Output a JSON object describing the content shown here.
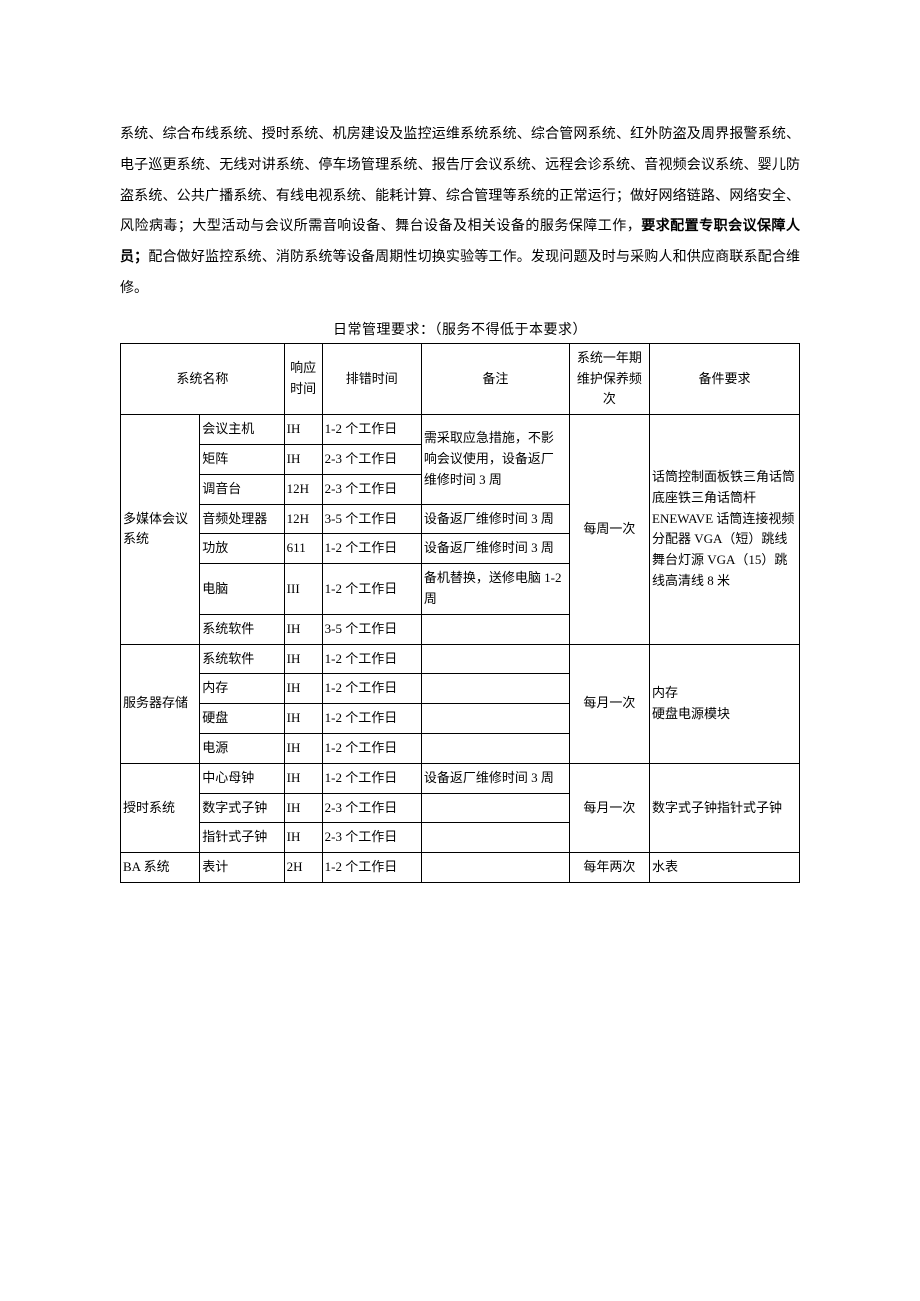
{
  "paragraph": {
    "run1": "系统、综合布线系统、授时系统、机房建设及监控运维系统系统、综合管网系统、红外防盗及周界报警系统、电子巡更系统、无线对讲系统、停车场管理系统、报告厅会议系统、远程会诊系统、音视频会议系统、婴儿防盗系统、公共广播系统、有线电视系统、能耗计算、综合管理等系统的正常运行；做好网络链路、网络安全、风险病毒；大型活动与会议所需音响设备、舞台设备及相关设备的服务保障工作，",
    "run2_bold": "要求配置专职会议保障人员；",
    "run3": "配合做好监控系统、消防系统等设备周期性切换实验等工作。发现问题及时与采购人和供应商联系配合维修。"
  },
  "table_caption": "日常管理要求：（服务不得低于本要求）",
  "headers": {
    "system_name": "系统名称",
    "response_time": "响应时间",
    "troubleshoot_time": "排错时间",
    "remark": "备注",
    "annual_maintenance": "系统一年期维护保养频次",
    "spare_requirement": "备件要求"
  },
  "groups": [
    {
      "system": "多媒体会议系统",
      "freq": "每周一次",
      "spare": "话筒控制面板铁三角话筒底座铁三角话筒杆 ENEWAVE 话筒连接视频分配器 VGA（短）跳线舞台灯源 VGA（15）跳线高清线 8 米",
      "rows": [
        {
          "sub": "会议主机",
          "resp": "IH",
          "time": "1-2 个工作日",
          "note": "需采取应急措施，不影",
          "note_span_group": 1
        },
        {
          "sub": "矩阵",
          "resp": "IH",
          "time": "2-3 个工作日",
          "note": "响会议使用，设备返厂",
          "note_span_group": 1
        },
        {
          "sub": "调音台",
          "resp": "12H",
          "time": "2-3 个工作日",
          "note": "维修时间 3 周",
          "note_span_group": 1
        },
        {
          "sub": "音频处理器",
          "resp": "12H",
          "time": "3-5 个工作日",
          "note": "设备返厂维修时间 3 周"
        },
        {
          "sub": "功放",
          "resp": "611",
          "time": "1-2 个工作日",
          "note": "设备返厂维修时间 3 周"
        },
        {
          "sub": "电脑",
          "resp": "III",
          "time": "1-2 个工作日",
          "note": "备机替换，送修电脑 1-2周"
        },
        {
          "sub": "系统软件",
          "resp": "IH",
          "time": "3-5 个工作日",
          "note": ""
        }
      ]
    },
    {
      "system": "服务器存储",
      "freq": "每月一次",
      "spare": "内存\n硬盘电源模块",
      "rows": [
        {
          "sub": "系统软件",
          "resp": "IH",
          "time": "1-2 个工作日",
          "note": ""
        },
        {
          "sub": "内存",
          "resp": "IH",
          "time": "1-2 个工作日",
          "note": ""
        },
        {
          "sub": "硬盘",
          "resp": "IH",
          "time": "1-2 个工作日",
          "note": ""
        },
        {
          "sub": "电源",
          "resp": "IH",
          "time": "1-2 个工作日",
          "note": ""
        }
      ]
    },
    {
      "system": "授时系统",
      "freq": "每月一次",
      "spare": "数字式子钟指针式子钟",
      "rows": [
        {
          "sub": "中心母钟",
          "resp": "IH",
          "time": "1-2 个工作日",
          "note": "设备返厂维修时间 3 周"
        },
        {
          "sub": "数字式子钟",
          "resp": "IH",
          "time": "2-3 个工作日",
          "note": ""
        },
        {
          "sub": "指针式子钟",
          "resp": "IH",
          "time": "2-3 个工作日",
          "note": ""
        }
      ]
    },
    {
      "system": "BA 系统",
      "freq": "每年两次",
      "spare": "水表",
      "rows": [
        {
          "sub": "表计",
          "resp": "2H",
          "time": "1-2 个工作日",
          "note": ""
        }
      ]
    }
  ]
}
